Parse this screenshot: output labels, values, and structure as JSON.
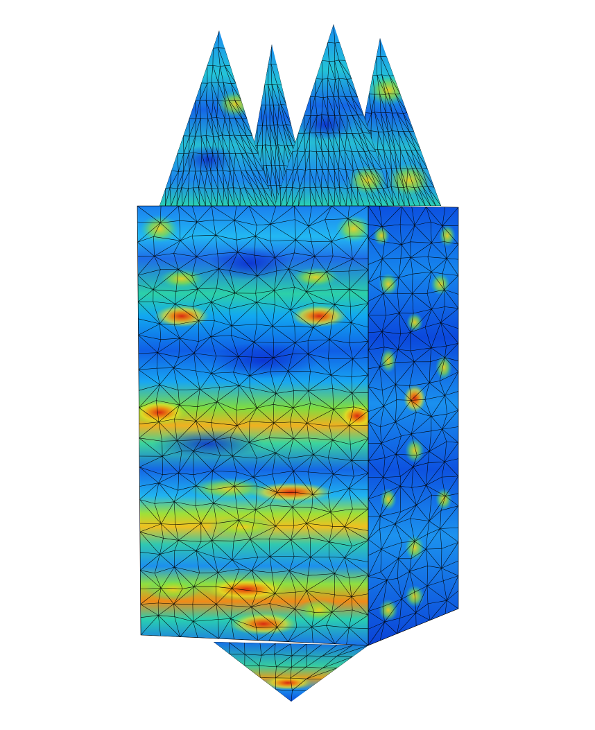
{
  "scene": {
    "subject": "fem-mesh-render",
    "parts": [
      {
        "name": "cone-top-left",
        "kind": "cone"
      },
      {
        "name": "cone-top-back-left",
        "kind": "cone"
      },
      {
        "name": "cone-top-center",
        "kind": "cone"
      },
      {
        "name": "cone-top-right",
        "kind": "cone"
      },
      {
        "name": "box-front-face",
        "kind": "face"
      },
      {
        "name": "box-right-face",
        "kind": "face"
      },
      {
        "name": "pyramid-bottom",
        "kind": "pyramid"
      }
    ],
    "colormap": [
      "#0a2ad6",
      "#0a6cf0",
      "#14b4f0",
      "#2ad8a0",
      "#8de03a",
      "#f0e020",
      "#f08a10",
      "#d62a10"
    ],
    "mesh_line_color": "#000000",
    "background": "#ffffff"
  }
}
